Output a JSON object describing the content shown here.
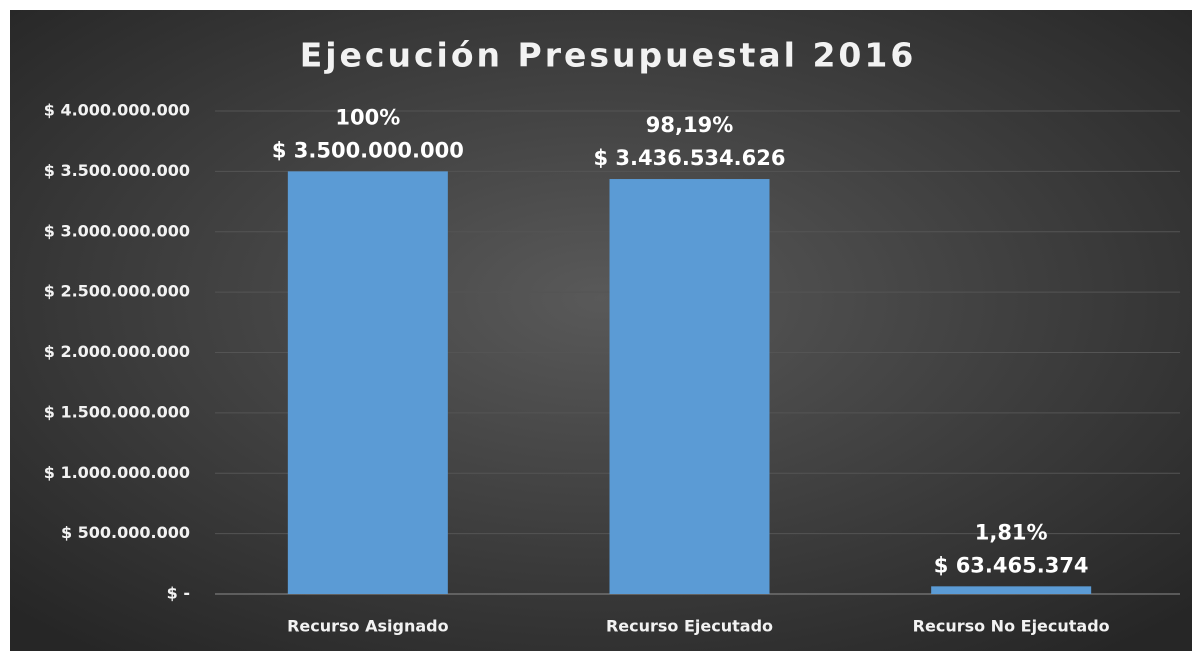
{
  "chart_data": {
    "type": "bar",
    "title": "Ejecución Presupuestal 2016",
    "categories": [
      "Recurso Asignado",
      "Recurso Ejecutado",
      "Recurso No Ejecutado"
    ],
    "values": [
      3500000000,
      3436534626,
      63465374
    ],
    "value_labels": [
      "$ 3.500.000.000",
      "$ 3.436.534.626",
      "$ 63.465.374"
    ],
    "percent_labels": [
      "100%",
      "98,19%",
      "1,81%"
    ],
    "color": "#5b9bd5",
    "ylim": [
      0,
      4000000000
    ],
    "yticks": [
      {
        "value": 0,
        "label": "$ -"
      },
      {
        "value": 500000000,
        "label": "$ 500.000.000"
      },
      {
        "value": 1000000000,
        "label": "$ 1.000.000.000"
      },
      {
        "value": 1500000000,
        "label": "$ 1.500.000.000"
      },
      {
        "value": 2000000000,
        "label": "$ 2.000.000.000"
      },
      {
        "value": 2500000000,
        "label": "$ 2.500.000.000"
      },
      {
        "value": 3000000000,
        "label": "$ 3.000.000.000"
      },
      {
        "value": 3500000000,
        "label": "$ 3.500.000.000"
      },
      {
        "value": 4000000000,
        "label": "$ 4.000.000.000"
      }
    ],
    "grid": true
  }
}
